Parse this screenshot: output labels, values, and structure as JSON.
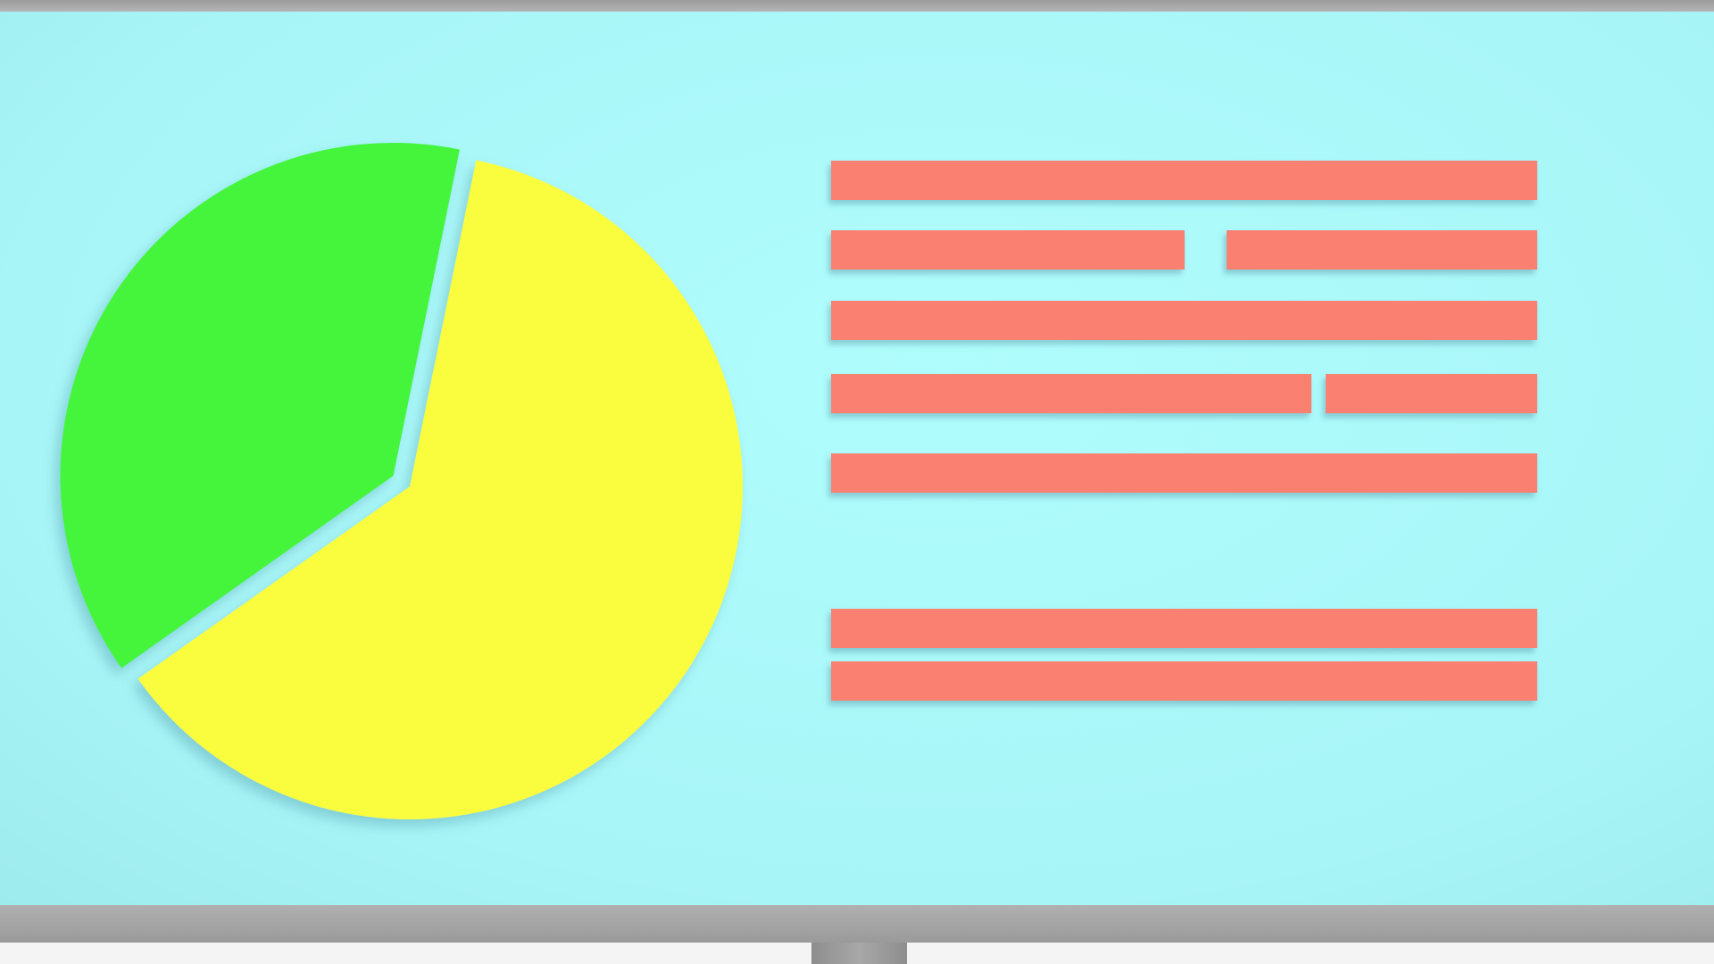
{
  "colors": {
    "screen": "#aafcfc",
    "bezel": "#a6a6a6",
    "placeholder_bar": "#fa8072"
  },
  "chart_data": {
    "type": "pie",
    "values": [
      62,
      38
    ],
    "colors": [
      "#fafd3c",
      "#44f53a"
    ],
    "exploded": [
      false,
      true
    ]
  },
  "placeholder_lines": [
    {
      "segments": [
        1.0
      ]
    },
    {
      "segments": [
        0.5,
        0.44
      ]
    },
    {
      "segments": [
        1.0
      ]
    },
    {
      "segments": [
        0.68,
        0.3
      ]
    },
    {
      "segments": [
        1.0
      ]
    },
    {
      "segments": [
        1.0
      ]
    },
    {
      "segments": [
        1.0
      ]
    }
  ]
}
